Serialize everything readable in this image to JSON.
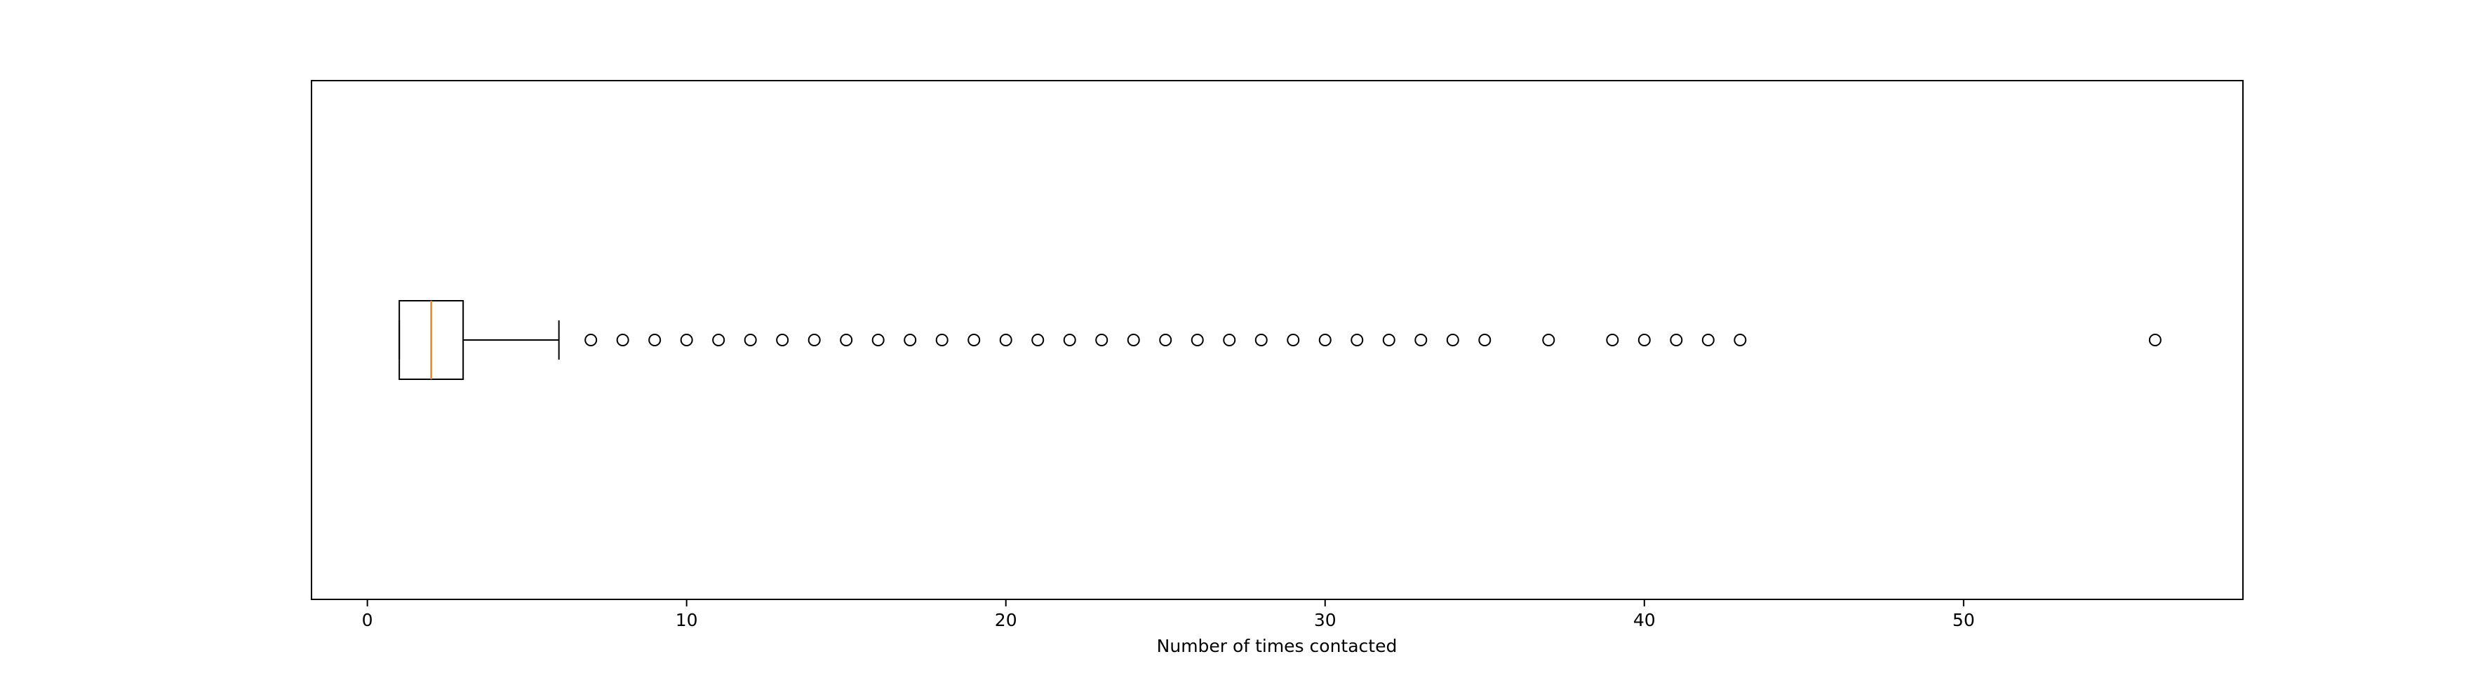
{
  "chart_data": {
    "type": "boxplot",
    "orientation": "horizontal",
    "title": "",
    "xlabel": "Number of times contacted",
    "ylabel": "",
    "xlim": [
      -1.75,
      58.75
    ],
    "xticks": [
      0,
      10,
      20,
      30,
      40,
      50
    ],
    "xtick_labels": [
      "0",
      "10",
      "20",
      "30",
      "40",
      "50"
    ],
    "grid": false,
    "box": {
      "whisker_low": 1,
      "q1": 1,
      "median": 2,
      "q3": 3,
      "whisker_high": 6
    },
    "outliers": [
      7,
      8,
      9,
      10,
      11,
      12,
      13,
      14,
      15,
      16,
      17,
      18,
      19,
      20,
      21,
      22,
      23,
      24,
      25,
      26,
      27,
      28,
      29,
      30,
      31,
      32,
      33,
      34,
      35,
      37,
      39,
      40,
      41,
      42,
      43,
      56
    ],
    "colors": {
      "box": "#000000",
      "median": "#ff7f0e",
      "whisker": "#000000",
      "outlier": "#000000"
    }
  }
}
